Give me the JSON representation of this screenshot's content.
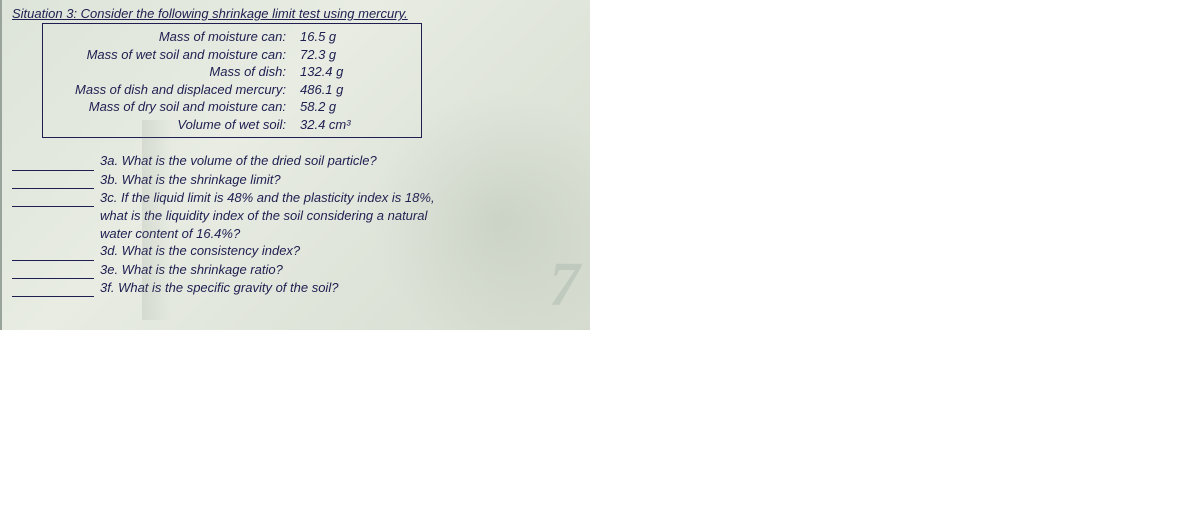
{
  "heading": "Situation 3: Consider the following shrinkage limit test using mercury.",
  "data_rows": [
    {
      "label": "Mass of moisture can:",
      "value": "16.5 g"
    },
    {
      "label": "Mass of wet soil and moisture can:",
      "value": "72.3 g"
    },
    {
      "label": "Mass of dish:",
      "value": "132.4 g"
    },
    {
      "label": "Mass of dish and displaced mercury:",
      "value": "486.1 g"
    },
    {
      "label": "Mass of dry soil and moisture can:",
      "value": "58.2 g"
    },
    {
      "label": "Volume of wet soil:",
      "value": "32.4 cm³"
    }
  ],
  "questions": {
    "a": "3a. What is the volume of the dried soil particle?",
    "b": "3b. What is the shrinkage limit?",
    "c_line1": "3c. If the liquid limit is 48% and the plasticity index is 18%,",
    "c_line2": "what is the liquidity index of the soil considering a natural",
    "c_line3": "water content of 16.4%?",
    "d": "3d. What is the consistency index?",
    "e": "3e. What is the shrinkage ratio?",
    "f": "3f. What is the specific gravity of the soil?"
  },
  "watermark_num": "7",
  "colors": {
    "text": "#1e1e50",
    "bg_light": "#e8ece3",
    "bg_dark": "#d5dccf",
    "border": "#1e1e50"
  }
}
